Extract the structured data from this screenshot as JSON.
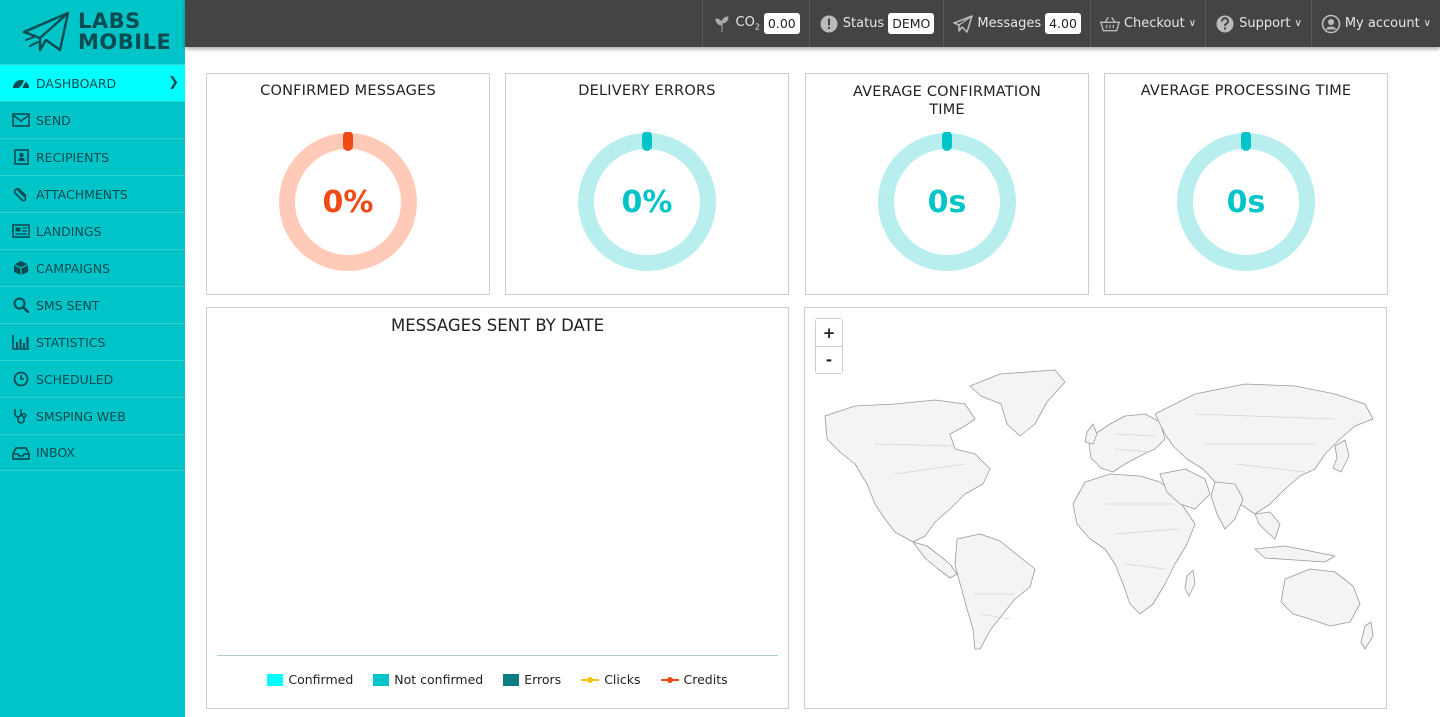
{
  "brand": {
    "line1": "LABS",
    "line2": "MOBILE"
  },
  "sidebar": {
    "items": [
      {
        "label": "DASHBOARD",
        "icon": "dashboard-gauge-icon",
        "active": true
      },
      {
        "label": "SEND",
        "icon": "envelope-icon"
      },
      {
        "label": "RECIPIENTS",
        "icon": "address-book-icon"
      },
      {
        "label": "ATTACHMENTS",
        "icon": "paperclip-icon"
      },
      {
        "label": "LANDINGS",
        "icon": "newspaper-icon"
      },
      {
        "label": "CAMPAIGNS",
        "icon": "cube-icon"
      },
      {
        "label": "SMS SENT",
        "icon": "search-icon"
      },
      {
        "label": "STATISTICS",
        "icon": "bar-chart-icon"
      },
      {
        "label": "SCHEDULED",
        "icon": "clock-icon"
      },
      {
        "label": "SMSPING WEB",
        "icon": "stethoscope-icon"
      },
      {
        "label": "INBOX",
        "icon": "inbox-icon"
      }
    ]
  },
  "topbar": {
    "co2": {
      "label": "CO",
      "sub": "2",
      "value": "0.00"
    },
    "status": {
      "label": "Status",
      "value": "DEMO"
    },
    "messages": {
      "label": "Messages",
      "value": "4.00"
    },
    "checkout": {
      "label": "Checkout"
    },
    "support": {
      "label": "Support"
    },
    "account": {
      "label": "My account"
    }
  },
  "cards": {
    "confirmed": {
      "title": "CONFIRMED MESSAGES",
      "value": "0%",
      "level": 0,
      "color": "#f04a17",
      "track": "#ffcab8"
    },
    "errors": {
      "title": "DELIVERY ERRORS",
      "value": "0%",
      "level": 0,
      "color": "#00c4c7",
      "track": "#b9eeef"
    },
    "avg_confirmation": {
      "title_line1": "AVERAGE CONFIRMATION",
      "title_line2": "TIME",
      "value": "0s",
      "level": 0,
      "color": "#00c4c7",
      "track": "#b9eeef"
    },
    "avg_processing": {
      "title": "AVERAGE PROCESSING TIME",
      "value": "0s",
      "level": 0,
      "color": "#00c4c7",
      "track": "#b9eeef"
    }
  },
  "chart": {
    "title": "MESSAGES SENT BY DATE",
    "legend": [
      {
        "name": "Confirmed",
        "color": "#00ffff",
        "kind": "box"
      },
      {
        "name": "Not confirmed",
        "color": "#00c4c7",
        "kind": "box"
      },
      {
        "name": "Errors",
        "color": "#0b7d80",
        "kind": "box"
      },
      {
        "name": "Clicks",
        "color": "#f0c419",
        "kind": "line"
      },
      {
        "name": "Credits",
        "color": "#f04a17",
        "kind": "line"
      }
    ]
  },
  "map": {
    "zoom_in": "+",
    "zoom_out": "-"
  }
}
